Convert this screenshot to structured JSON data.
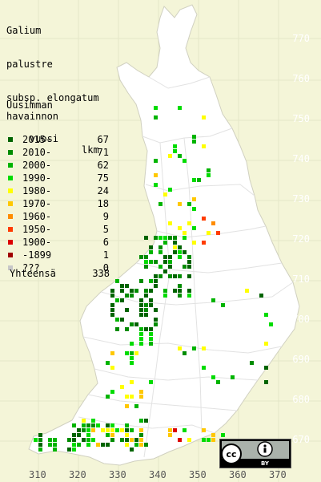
{
  "title": [
    "Galium",
    "palustre",
    "subsp. elongatum"
  ],
  "legend": {
    "header": [
      "Uusimman",
      "havainnon",
      "vuosi"
    ],
    "count_header": "lkm",
    "rows": [
      {
        "label": "2015-",
        "count": "67",
        "color": "#006400"
      },
      {
        "label": "2010-",
        "count": "71",
        "color": "#008c00"
      },
      {
        "label": "2000-",
        "count": "62",
        "color": "#00b400"
      },
      {
        "label": "1990-",
        "count": "75",
        "color": "#00dc00"
      },
      {
        "label": "1980-",
        "count": "24",
        "color": "#ffff00"
      },
      {
        "label": "1970-",
        "count": "18",
        "color": "#ffc800"
      },
      {
        "label": "1960-",
        "count": "9",
        "color": "#ff8c00"
      },
      {
        "label": "1950-",
        "count": "5",
        "color": "#ff3c00"
      },
      {
        "label": "1900-",
        "count": "6",
        "color": "#dc0000"
      },
      {
        "label": "-1899",
        "count": "1",
        "color": "#a00000"
      },
      {
        "label": "???",
        "count": "0",
        "color": "#c8c8c8"
      }
    ],
    "total_label": "Yhteensä",
    "total_count": "338"
  },
  "y_axis": [
    "770",
    "760",
    "750",
    "740",
    "730",
    "720",
    "710",
    "700",
    "690",
    "680",
    "670"
  ],
  "x_axis": [
    "310",
    "320",
    "330",
    "340",
    "350",
    "360",
    "370"
  ],
  "license": {
    "text": "cc",
    "by": "BY"
  }
}
